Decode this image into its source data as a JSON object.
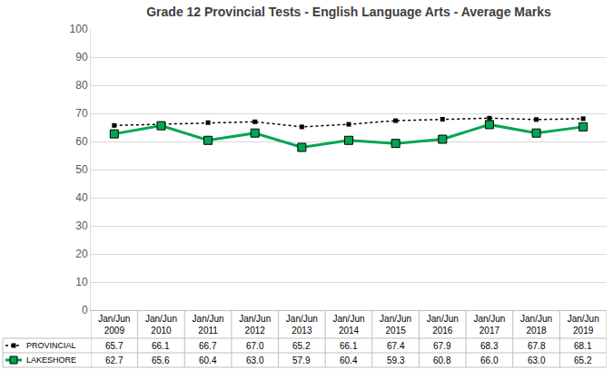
{
  "chart_data": {
    "type": "line",
    "title": "Grade 12 Provincial Tests - English Language Arts - Average Marks",
    "categories": [
      "Jan/Jun 2009",
      "Jan/Jun 2010",
      "Jan/Jun 2011",
      "Jan/Jun 2012",
      "Jan/Jun 2013",
      "Jan/Jun 2014",
      "Jan/Jun 2015",
      "Jan/Jun 2016",
      "Jan/Jun 2017",
      "Jan/Jun 2018",
      "Jan/Jun 2019"
    ],
    "series": [
      {
        "name": "PROVINCIAL",
        "color": "#000000",
        "marker": "square",
        "line_style": "dot",
        "values": [
          65.7,
          66.1,
          66.7,
          67.0,
          65.2,
          66.1,
          67.4,
          67.9,
          68.3,
          67.8,
          68.1
        ],
        "value_labels": [
          "65.7",
          "66.1",
          "66.7",
          "67.0",
          "65.2",
          "66.1",
          "67.4",
          "67.9",
          "68.3",
          "67.8",
          "68.1"
        ]
      },
      {
        "name": "LAKESHORE",
        "color": "#00a651",
        "marker": "square",
        "line_style": "solid",
        "values": [
          62.7,
          65.6,
          60.4,
          63.0,
          57.9,
          60.4,
          59.3,
          60.8,
          66.0,
          63.0,
          65.2
        ],
        "value_labels": [
          "62.7",
          "65.6",
          "60.4",
          "63.0",
          "57.9",
          "60.4",
          "59.3",
          "60.8",
          "66.0",
          "63.0",
          "65.2"
        ]
      }
    ],
    "ylim": [
      0,
      100
    ],
    "yticks": [
      0,
      10,
      20,
      30,
      40,
      50,
      60,
      70,
      80,
      90,
      100
    ],
    "grid": true
  }
}
